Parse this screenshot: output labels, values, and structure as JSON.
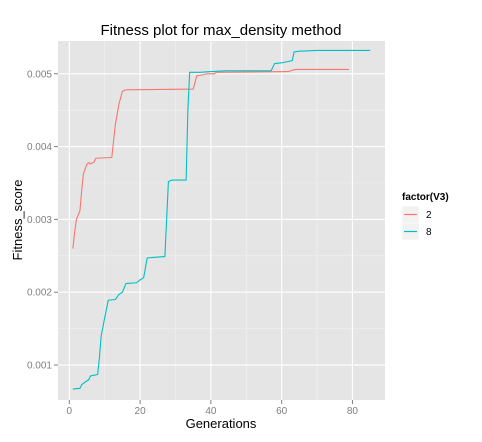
{
  "chart_data": {
    "type": "line",
    "title": "Fitness plot for max_density method",
    "xlabel": "Generations",
    "ylabel": "Fitness_score",
    "xlim": [
      -3.2,
      89.2
    ],
    "ylim": [
      0.00052,
      0.00545
    ],
    "x_ticks": [
      0,
      20,
      40,
      60,
      80
    ],
    "x_tick_labels": [
      "0",
      "20",
      "40",
      "60",
      "80"
    ],
    "y_ticks": [
      0.001,
      0.002,
      0.003,
      0.004,
      0.005
    ],
    "y_tick_labels": [
      "0.001",
      "0.002",
      "0.003",
      "0.004",
      "0.005"
    ],
    "grid": true,
    "legend_title": "factor(V3)",
    "legend_position": "right",
    "series": [
      {
        "name": "2",
        "color": "#F8766D",
        "points": [
          [
            1,
            0.0026
          ],
          [
            1.5,
            0.00282
          ],
          [
            2,
            0.003
          ],
          [
            3,
            0.00312
          ],
          [
            3.5,
            0.0034
          ],
          [
            4,
            0.00363
          ],
          [
            5,
            0.00376
          ],
          [
            5.5,
            0.00378
          ],
          [
            6,
            0.00376
          ],
          [
            7,
            0.00379
          ],
          [
            7.5,
            0.00384
          ],
          [
            12,
            0.00385
          ],
          [
            12.5,
            0.00408
          ],
          [
            13,
            0.0043
          ],
          [
            14,
            0.00458
          ],
          [
            15,
            0.00476
          ],
          [
            16,
            0.00478
          ],
          [
            35,
            0.00479
          ],
          [
            36,
            0.00497
          ],
          [
            37,
            0.00498
          ],
          [
            38,
            0.00499
          ],
          [
            39,
            0.005
          ],
          [
            41,
            0.005
          ],
          [
            41.5,
            0.00502
          ],
          [
            62,
            0.00503
          ],
          [
            63,
            0.00505
          ],
          [
            64,
            0.00506
          ],
          [
            79,
            0.00506
          ]
        ]
      },
      {
        "name": "8",
        "color": "#00BFC4",
        "points": [
          [
            1,
            0.00067
          ],
          [
            3,
            0.00068
          ],
          [
            3.5,
            0.00073
          ],
          [
            4,
            0.00075
          ],
          [
            5.5,
            0.0008
          ],
          [
            6,
            0.00085
          ],
          [
            8,
            0.00087
          ],
          [
            8.5,
            0.0011
          ],
          [
            9,
            0.0014
          ],
          [
            10,
            0.00165
          ],
          [
            11,
            0.00189
          ],
          [
            13,
            0.0019
          ],
          [
            14,
            0.00197
          ],
          [
            15,
            0.002
          ],
          [
            16,
            0.00212
          ],
          [
            19,
            0.00213
          ],
          [
            20,
            0.00217
          ],
          [
            21,
            0.0022
          ],
          [
            22,
            0.00247
          ],
          [
            24,
            0.00248
          ],
          [
            27,
            0.00249
          ],
          [
            28,
            0.00352
          ],
          [
            29,
            0.00354
          ],
          [
            33,
            0.00354
          ],
          [
            33.5,
            0.0045
          ],
          [
            34,
            0.00502
          ],
          [
            37,
            0.00502
          ],
          [
            40,
            0.00503
          ],
          [
            44,
            0.00504
          ],
          [
            57,
            0.00504
          ],
          [
            58,
            0.00514
          ],
          [
            60,
            0.00515
          ],
          [
            61,
            0.00516
          ],
          [
            62,
            0.00517
          ],
          [
            63,
            0.00518
          ],
          [
            63.5,
            0.0053
          ],
          [
            65,
            0.00531
          ],
          [
            70,
            0.00532
          ],
          [
            85,
            0.00532
          ]
        ]
      }
    ]
  }
}
